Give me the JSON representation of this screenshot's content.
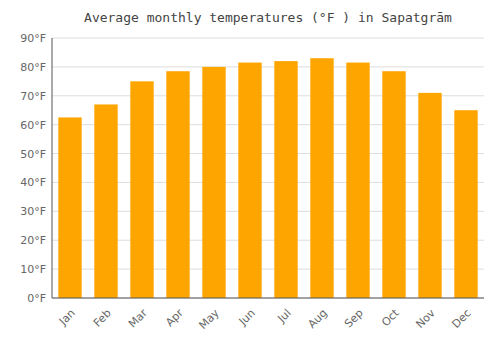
{
  "chart_data": {
    "type": "bar",
    "title": "Average monthly temperatures (°F ) in Sapatgrām",
    "categories": [
      "Jan",
      "Feb",
      "Mar",
      "Apr",
      "May",
      "Jun",
      "Jul",
      "Aug",
      "Sep",
      "Oct",
      "Nov",
      "Dec"
    ],
    "values": [
      62.5,
      67,
      75,
      78.5,
      80,
      81.5,
      82,
      83,
      81.5,
      78.5,
      71,
      65
    ],
    "color": "#FFA500",
    "ylim": [
      0,
      90
    ],
    "yticks": [
      {
        "value": 0,
        "label": "0°F"
      },
      {
        "value": 10,
        "label": "10°F"
      },
      {
        "value": 20,
        "label": "20°F"
      },
      {
        "value": 30,
        "label": "30°F"
      },
      {
        "value": 40,
        "label": "40°F"
      },
      {
        "value": 50,
        "label": "50°F"
      },
      {
        "value": 60,
        "label": "60°F"
      },
      {
        "value": 70,
        "label": "70°F"
      },
      {
        "value": 80,
        "label": "80°F"
      },
      {
        "value": 90,
        "label": "90°F"
      }
    ],
    "grid": true
  }
}
